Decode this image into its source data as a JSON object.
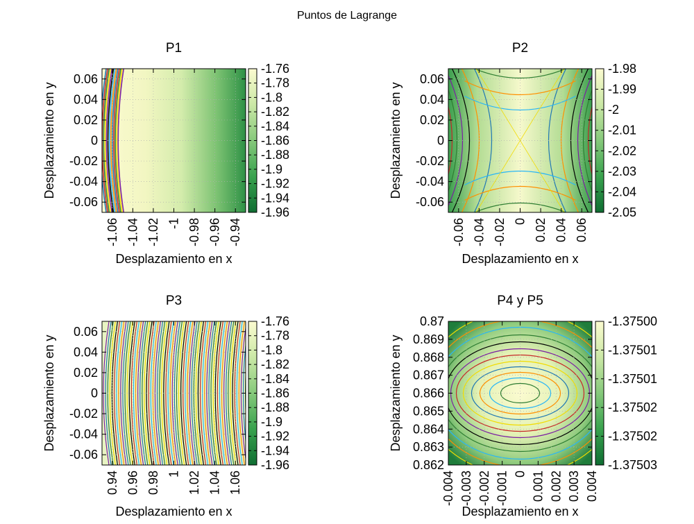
{
  "figure": {
    "title": "Puntos de Lagrange"
  },
  "colors": {
    "palette": [
      "#0f6d32",
      "#39a24e",
      "#86c97b",
      "#cbe8a6",
      "#fbfbd0"
    ],
    "contour_lines": [
      "#7b1fa2",
      "#1f77b4",
      "#2e7d32",
      "#ff8f00",
      "#f2dc00",
      "#000000",
      "#29b6f6",
      "#c62828"
    ],
    "grid": "#b0b0b0"
  },
  "chart_data": [
    {
      "id": "p1",
      "type": "heatmap",
      "title": "P1",
      "xlabel": "Desplazamiento en x",
      "ylabel": "Desplazamiento en y",
      "xlim": [
        -1.07,
        -0.93
      ],
      "ylim": [
        -0.07,
        0.07
      ],
      "xticks": [
        "-1.06",
        "-1.04",
        "-1.02",
        "-1",
        "-0.98",
        "-0.96",
        "-0.94"
      ],
      "xtick_values": [
        -1.06,
        -1.04,
        -1.02,
        -1,
        -0.98,
        -0.96,
        -0.94
      ],
      "yticks": [
        "0.06",
        "0.04",
        "0.02",
        "0",
        "-0.02",
        "-0.04",
        "-0.06"
      ],
      "ytick_values": [
        0.06,
        0.04,
        0.02,
        0,
        -0.02,
        -0.04,
        -0.06
      ],
      "xtick_rotated": true,
      "grid": true,
      "colorbar": {
        "range": [
          -1.96,
          -1.76
        ],
        "ticks": [
          "-1.76",
          "-1.78",
          "-1.8",
          "-1.82",
          "-1.84",
          "-1.86",
          "-1.88",
          "-1.9",
          "-1.92",
          "-1.94",
          "-1.96"
        ]
      },
      "pattern": "p1"
    },
    {
      "id": "p2",
      "type": "heatmap",
      "title": "P2",
      "xlabel": "Desplazamiento en x",
      "ylabel": "Desplazamiento en y",
      "xlim": [
        -0.07,
        0.07
      ],
      "ylim": [
        -0.07,
        0.07
      ],
      "xticks": [
        "-0.06",
        "-0.04",
        "-0.02",
        "0",
        "0.02",
        "0.04",
        "0.06"
      ],
      "xtick_values": [
        -0.06,
        -0.04,
        -0.02,
        0,
        0.02,
        0.04,
        0.06
      ],
      "yticks": [
        "0.06",
        "0.04",
        "0.02",
        "0",
        "-0.02",
        "-0.04",
        "-0.06"
      ],
      "ytick_values": [
        0.06,
        0.04,
        0.02,
        0,
        -0.02,
        -0.04,
        -0.06
      ],
      "xtick_rotated": true,
      "grid": true,
      "colorbar": {
        "range": [
          -2.05,
          -1.98
        ],
        "ticks": [
          "-1.98",
          "-1.99",
          "-2",
          "-2.01",
          "-2.02",
          "-2.03",
          "-2.04",
          "-2.05"
        ]
      },
      "pattern": "p2"
    },
    {
      "id": "p3",
      "type": "heatmap",
      "title": "P3",
      "xlabel": "Desplazamiento en x",
      "ylabel": "Desplazamiento en y",
      "xlim": [
        0.93,
        1.07
      ],
      "ylim": [
        -0.07,
        0.07
      ],
      "xticks": [
        "0.94",
        "0.96",
        "0.98",
        "1",
        "1.02",
        "1.04",
        "1.06"
      ],
      "xtick_values": [
        0.94,
        0.96,
        0.98,
        1,
        1.02,
        1.04,
        1.06
      ],
      "yticks": [
        "0.06",
        "0.04",
        "0.02",
        "0",
        "-0.02",
        "-0.04",
        "-0.06"
      ],
      "ytick_values": [
        0.06,
        0.04,
        0.02,
        0,
        -0.02,
        -0.04,
        -0.06
      ],
      "xtick_rotated": true,
      "grid": true,
      "colorbar": {
        "range": [
          -1.96,
          -1.76
        ],
        "ticks": [
          "-1.76",
          "-1.78",
          "-1.8",
          "-1.82",
          "-1.84",
          "-1.86",
          "-1.88",
          "-1.9",
          "-1.92",
          "-1.94",
          "-1.96"
        ]
      },
      "pattern": "p3"
    },
    {
      "id": "p4",
      "type": "heatmap",
      "title": "P4 y P5",
      "xlabel": "Desplazamiento en x",
      "ylabel": "Desplazamiento en y",
      "xlim": [
        -0.004,
        0.004
      ],
      "ylim": [
        0.862,
        0.87
      ],
      "xticks": [
        "-0.004",
        "-0.003",
        "-0.002",
        "-0.001",
        "0",
        "0.001",
        "0.002",
        "0.003",
        "0.004"
      ],
      "xtick_values": [
        -0.004,
        -0.003,
        -0.002,
        -0.001,
        0,
        0.001,
        0.002,
        0.003,
        0.004
      ],
      "yticks": [
        "0.87",
        "0.869",
        "0.868",
        "0.867",
        "0.866",
        "0.865",
        "0.864",
        "0.863",
        "0.862"
      ],
      "ytick_values": [
        0.87,
        0.869,
        0.868,
        0.867,
        0.866,
        0.865,
        0.864,
        0.863,
        0.862
      ],
      "xtick_rotated": true,
      "grid": true,
      "colorbar": {
        "range": [
          -1.37503,
          -1.375
        ],
        "ticks": [
          "-1.37500",
          "-1.37501",
          "-1.37501",
          "-1.37502",
          "-1.37502",
          "-1.37503"
        ]
      },
      "pattern": "p4"
    }
  ]
}
